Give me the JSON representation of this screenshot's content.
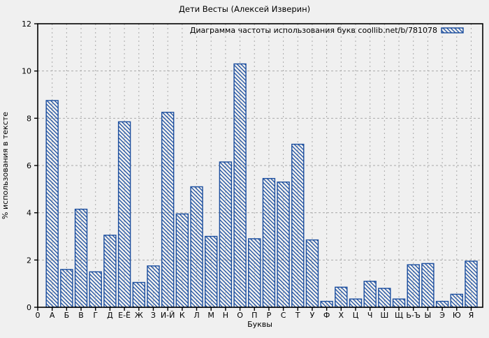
{
  "colors": {
    "background": "#f0f0f0",
    "bar_blue": "#1a4d9e",
    "grid_gray": "#a9a9a9",
    "frame_black": "#000000"
  },
  "chart_data": {
    "type": "bar",
    "title": "Дети Весты (Алексей Изверин)",
    "legend": "Диаграмма частоты использования букв coollib.net/b/781078",
    "legend_position": "top-right-inside",
    "xlabel": "Буквы",
    "ylabel": "% использования в тексте",
    "x_origin_tick_label": "0",
    "ylim": [
      0,
      12
    ],
    "yticks": [
      0,
      2,
      4,
      6,
      8,
      10,
      12
    ],
    "grid": "dashed",
    "bar_style": "unfilled with blue backslash diagonal hatch",
    "categories": [
      "А",
      "Б",
      "В",
      "Г",
      "Д",
      "Е-Ё",
      "Ж",
      "З",
      "И-Й",
      "К",
      "Л",
      "М",
      "Н",
      "О",
      "П",
      "Р",
      "С",
      "Т",
      "У",
      "Ф",
      "Х",
      "Ц",
      "Ч",
      "Ш",
      "Щ",
      "Ь-Ъ",
      "Ы",
      "Э",
      "Ю",
      "Я"
    ],
    "values": [
      8.75,
      1.6,
      4.15,
      1.5,
      3.05,
      7.85,
      1.05,
      1.75,
      8.25,
      3.95,
      5.1,
      3.0,
      6.15,
      10.3,
      2.9,
      5.45,
      5.3,
      6.9,
      2.85,
      0.25,
      0.85,
      0.35,
      1.1,
      0.8,
      0.35,
      1.8,
      1.85,
      0.25,
      0.55,
      1.95
    ]
  }
}
